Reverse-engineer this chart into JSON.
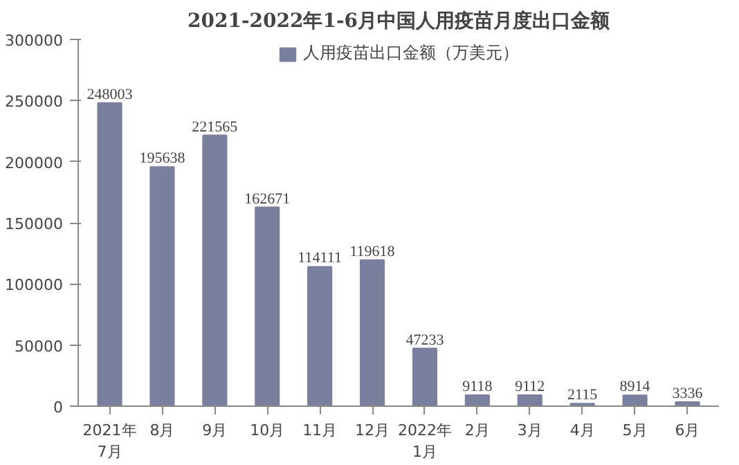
{
  "chart_data": {
    "type": "bar",
    "title": "2021-2022年1-6月中国人用疫苗月度出口金额",
    "categories": [
      "2021年\n7月",
      "8月",
      "9月",
      "10月",
      "11月",
      "12月",
      "2022年\n1月",
      "2月",
      "3月",
      "4月",
      "5月",
      "6月"
    ],
    "series": [
      {
        "name": "人用疫苗出口金额（万美元）",
        "color": "#7b7f9e",
        "values": [
          248003,
          195638,
          221565,
          162671,
          114111,
          119618,
          47233,
          9118,
          9112,
          2115,
          8914,
          3336
        ]
      }
    ],
    "ylim": [
      0,
      300000
    ],
    "yticks": [
      0,
      50000,
      100000,
      150000,
      200000,
      250000,
      300000
    ],
    "data_labels": true,
    "legend": "top",
    "grid": false
  }
}
